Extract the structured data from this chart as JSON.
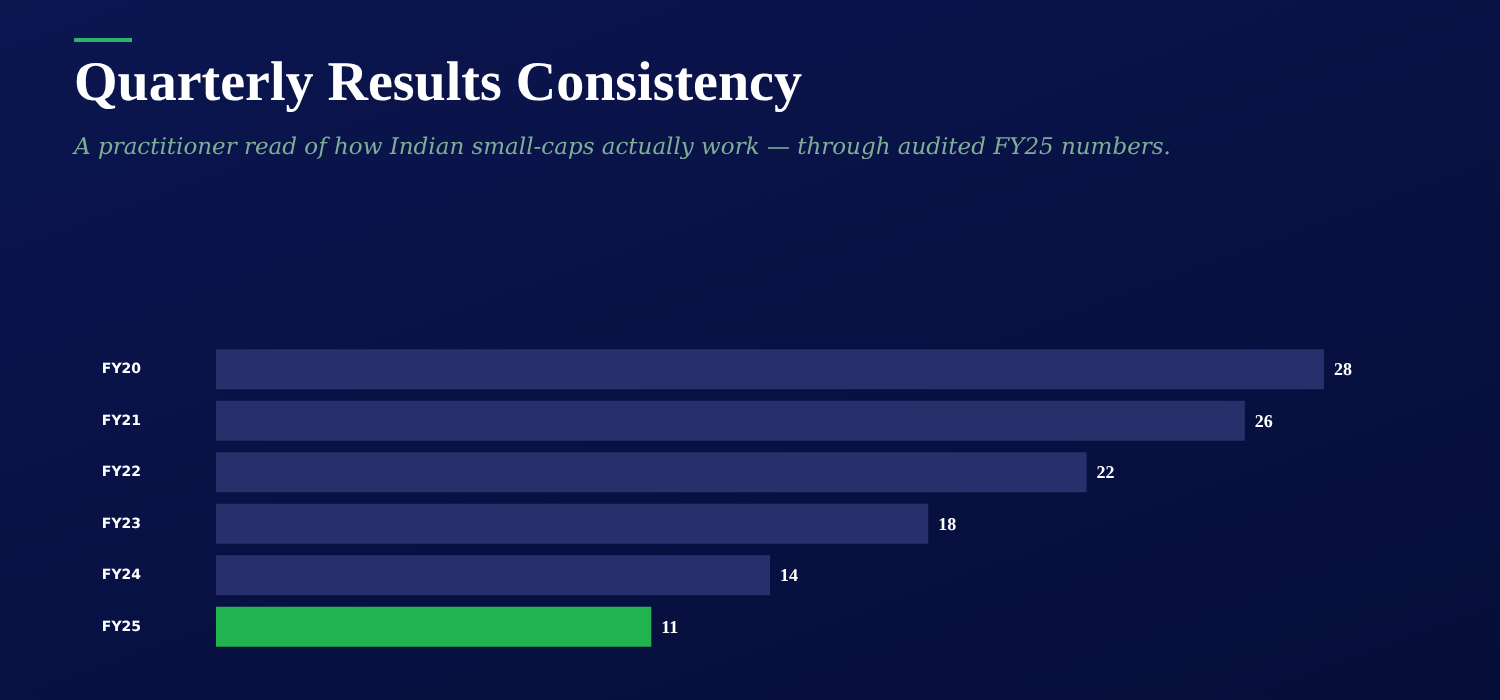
{
  "chart_data": {
    "type": "bar",
    "orientation": "horizontal",
    "title": "Quarterly Results Consistency",
    "subtitle": "A practitioner read of how Indian small-caps actually work — through audited FY25 numbers.",
    "categories": [
      "FY20",
      "FY21",
      "FY22",
      "FY23",
      "FY24",
      "FY25"
    ],
    "values": [
      28,
      26,
      22,
      18,
      14,
      11
    ],
    "colors": [
      "#27306b",
      "#27306b",
      "#27306b",
      "#27306b",
      "#27306b",
      "#22b24f"
    ],
    "data_labels": true
  }
}
